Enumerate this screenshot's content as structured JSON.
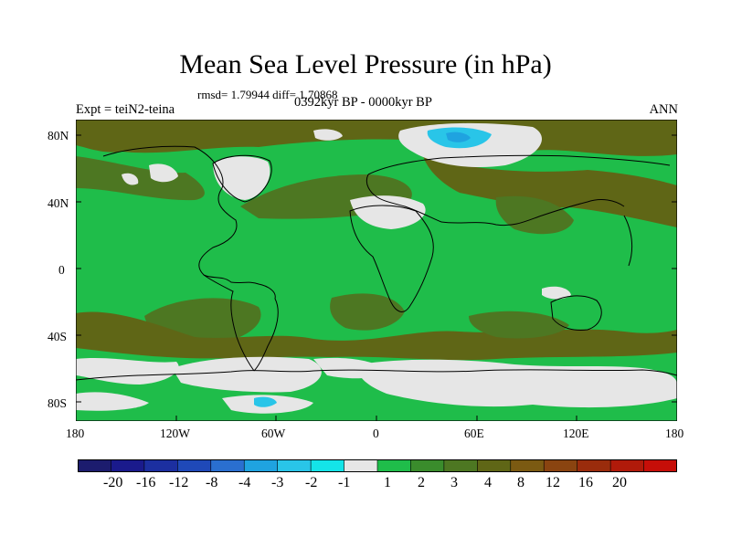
{
  "figure": {
    "title": "Mean Sea Level Pressure (in hPa)",
    "stats": "rmsd= 1.79944 diff= 1.70868",
    "experiment": "Expt = teiN2-teina",
    "period": "0392kyr BP - 0000kyr BP",
    "season": "ANN"
  },
  "axes": {
    "y_ticks": [
      "80N",
      "40N",
      "0",
      "40S",
      "80S"
    ],
    "x_ticks": [
      "180",
      "120W",
      "60W",
      "0",
      "60E",
      "120E",
      "180"
    ]
  },
  "colorbar": {
    "colors": [
      "#1c1c6e",
      "#1a1a8c",
      "#1c2fa0",
      "#1f49b8",
      "#2a6fd0",
      "#1fa3e0",
      "#29c5e8",
      "#14e4e8",
      "#e6e6e6",
      "#1fbd4a",
      "#3a8c2c",
      "#4d7722",
      "#5f6616",
      "#7b5a12",
      "#8a4410",
      "#9a2c0c",
      "#b01a0a",
      "#c60e08"
    ],
    "labels": [
      "-20",
      "-16",
      "-12",
      "-8",
      "-4",
      "-3",
      "-2",
      "-1",
      "1",
      "2",
      "3",
      "4",
      "8",
      "12",
      "16",
      "20"
    ]
  },
  "map_colors": {
    "ocean_base": "#1fbd4a",
    "positive_mid": "#4d7722",
    "positive_dark": "#5f6616",
    "near_zero": "#e6e6e6",
    "negative_light": "#29c5e8",
    "negative_mid": "#1fa3e0",
    "coast": "#000000"
  }
}
